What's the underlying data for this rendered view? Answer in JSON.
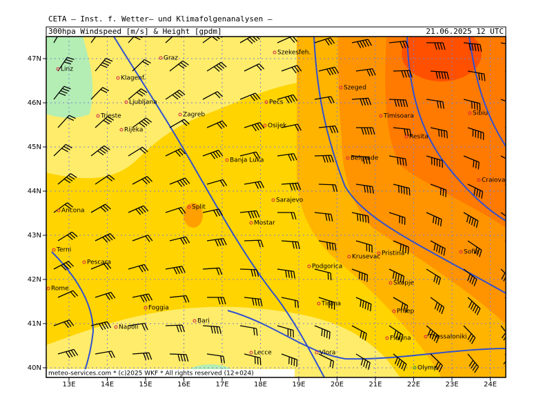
{
  "header": {
    "org": "CETA — Inst. f. Wetter— und Klimafolgenanalysen —",
    "title": "300hpa Windspeed [m/s] & Height [gpdm]",
    "datetime": "21.06.2025 12 UTC"
  },
  "axes": {
    "lat_labels": [
      "47N",
      "46N",
      "45N",
      "44N",
      "43N",
      "42N",
      "41N",
      "40N"
    ],
    "lon_labels": [
      "13E",
      "14E",
      "15E",
      "16E",
      "17E",
      "18E",
      "19E",
      "20E",
      "21E",
      "22E",
      "23E",
      "24E"
    ]
  },
  "cities": [
    "Linz",
    "Graz",
    "Szekesfeh.",
    "Klagenf.",
    "Ljubljana",
    "Zagreb",
    "Pecs",
    "Szeged",
    "Trieste",
    "Rijeka",
    "Osijek",
    "Timisoara",
    "Sibiu",
    "Resita",
    "Banja Luka",
    "Belgrade",
    "Craiova",
    "Sarajevo",
    "Ancona",
    "Split",
    "Mostar",
    "Terni",
    "Krusevac",
    "Pristina",
    "Sofia",
    "Pescara",
    "Podgorica",
    "Rome",
    "Skopje",
    "Foggia",
    "Tirana",
    "Prilep",
    "Bari",
    "Napoli",
    "Florina",
    "Thessaloniki",
    "Lecce",
    "Vlora",
    "Olymp"
  ],
  "footer": "meteo-services.com * (c)2025 WKF * All rights reserved (12+024)"
}
